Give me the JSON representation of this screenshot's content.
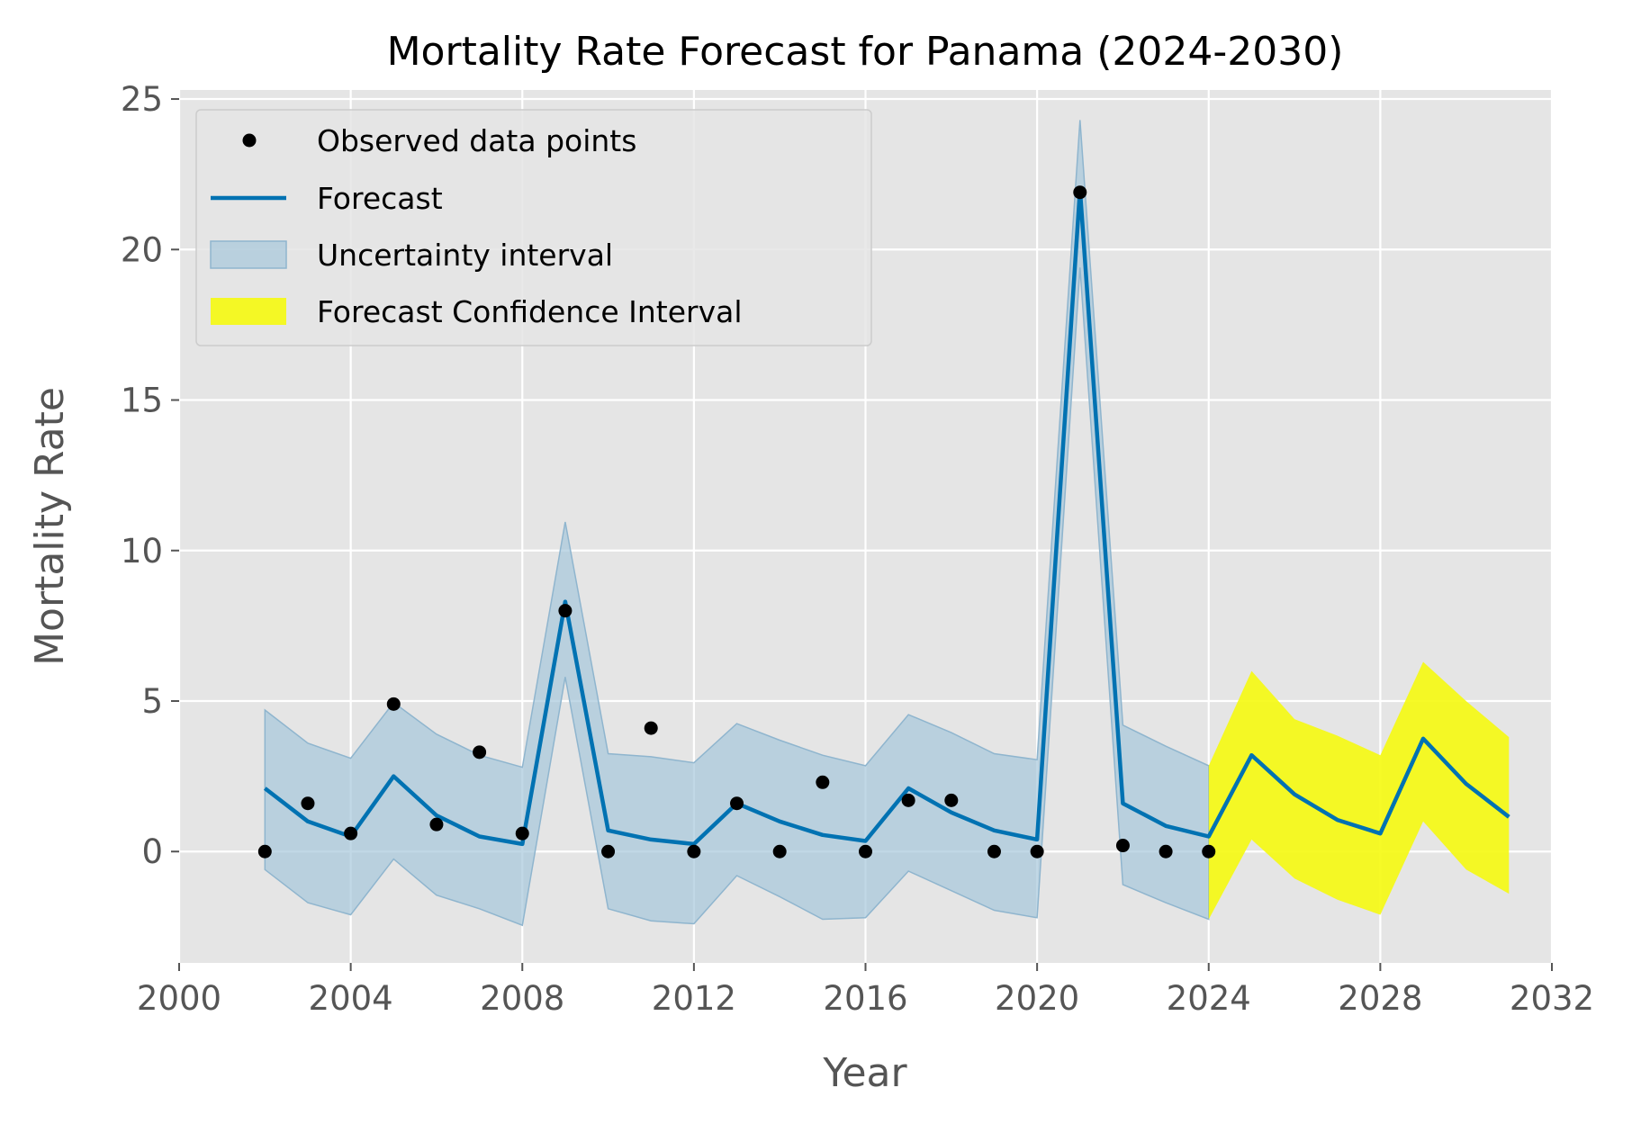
{
  "chart_data": {
    "type": "line",
    "title": "Mortality Rate Forecast for Panama (2024-2030)",
    "xlabel": "Year",
    "ylabel": "Mortality Rate",
    "xlim": [
      2000,
      2032
    ],
    "ylim": [
      -3.7,
      25.3
    ],
    "xticks": [
      2000,
      2004,
      2008,
      2012,
      2016,
      2020,
      2024,
      2028,
      2032
    ],
    "yticks": [
      0,
      5,
      10,
      15,
      20,
      25
    ],
    "grid": true,
    "legend_position": "top-left",
    "colors": {
      "background": "#e5e5e5",
      "grid": "#ffffff",
      "forecast": "#0072b2",
      "uncertainty": "#a7c7dc",
      "forecast_ci": "#f5fa0f",
      "observed": "#000000"
    },
    "legend": [
      {
        "key": "observed",
        "label": "Observed data points"
      },
      {
        "key": "forecast",
        "label": "Forecast"
      },
      {
        "key": "uncertainty",
        "label": "Uncertainty interval"
      },
      {
        "key": "forecast_ci",
        "label": "Forecast Confidence Interval"
      }
    ],
    "observed": {
      "x": [
        2002,
        2003,
        2004,
        2005,
        2006,
        2007,
        2008,
        2009,
        2010,
        2011,
        2012,
        2013,
        2014,
        2015,
        2016,
        2017,
        2018,
        2019,
        2020,
        2021,
        2022,
        2023,
        2024
      ],
      "y": [
        0,
        1.6,
        0.6,
        4.9,
        0.9,
        3.3,
        0.6,
        8.0,
        0,
        4.1,
        0,
        1.6,
        0,
        2.3,
        0,
        1.7,
        1.7,
        0,
        0,
        21.9,
        0.2,
        0,
        0
      ]
    },
    "forecast": {
      "x": [
        2002,
        2003,
        2004,
        2005,
        2006,
        2007,
        2008,
        2009,
        2010,
        2011,
        2012,
        2013,
        2014,
        2015,
        2016,
        2017,
        2018,
        2019,
        2020,
        2021,
        2022,
        2023,
        2024,
        2025,
        2026,
        2027,
        2028,
        2029,
        2030,
        2031
      ],
      "y": [
        2.1,
        1.0,
        0.5,
        2.5,
        1.2,
        0.5,
        0.25,
        8.3,
        0.7,
        0.4,
        0.25,
        1.6,
        1.0,
        0.55,
        0.35,
        2.1,
        1.3,
        0.7,
        0.4,
        22.0,
        1.6,
        0.85,
        0.5,
        3.2,
        1.9,
        1.05,
        0.6,
        3.75,
        2.25,
        1.15
      ]
    },
    "uncertainty_interval": {
      "x": [
        2002,
        2003,
        2004,
        2005,
        2006,
        2007,
        2008,
        2009,
        2010,
        2011,
        2012,
        2013,
        2014,
        2015,
        2016,
        2017,
        2018,
        2019,
        2020,
        2021,
        2022,
        2023,
        2024
      ],
      "lower": [
        -0.6,
        -1.7,
        -2.1,
        -0.25,
        -1.45,
        -1.9,
        -2.45,
        5.8,
        -1.9,
        -2.3,
        -2.4,
        -0.8,
        -1.5,
        -2.25,
        -2.2,
        -0.65,
        -1.3,
        -1.95,
        -2.2,
        19.4,
        -1.1,
        -1.7,
        -2.25
      ],
      "upper": [
        4.7,
        3.6,
        3.1,
        4.95,
        3.9,
        3.2,
        2.8,
        10.95,
        3.25,
        3.15,
        2.95,
        4.25,
        3.7,
        3.2,
        2.85,
        4.55,
        3.95,
        3.25,
        3.05,
        24.3,
        4.2,
        3.5,
        2.85
      ]
    },
    "forecast_confidence_interval": {
      "x": [
        2024,
        2025,
        2026,
        2027,
        2028,
        2029,
        2030,
        2031
      ],
      "lower": [
        -2.25,
        0.4,
        -0.9,
        -1.6,
        -2.1,
        1.0,
        -0.6,
        -1.4
      ],
      "upper": [
        2.85,
        6.0,
        4.4,
        3.85,
        3.2,
        6.3,
        5.0,
        3.8
      ]
    }
  }
}
